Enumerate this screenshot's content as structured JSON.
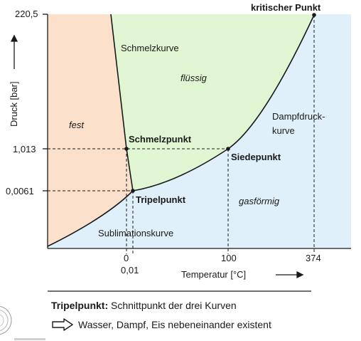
{
  "colors": {
    "solid": "#fbe0cc",
    "liquid": "#e0f6d3",
    "gas": "#dff0fb",
    "line": "#1a1a1a"
  },
  "axes": {
    "y_label": "Druck [bar]",
    "x_label": "Temperatur [°C]",
    "y_ticks": [
      "220,5",
      "1,013",
      "0,0061"
    ],
    "x_ticks": [
      "0",
      "0,01",
      "100",
      "374"
    ]
  },
  "regions": {
    "solid": "fest",
    "liquid": "flüssig",
    "gas": "gasförmig"
  },
  "curves": {
    "melting": "Schmelzkurve",
    "vapor_line_1": "Dampfdruck-",
    "vapor_line_2": "kurve",
    "sublimation": "Sublimationskurve"
  },
  "points": {
    "critical": "kritischer Punkt",
    "melting": "Schmelzpunkt",
    "boiling": "Siedepunkt",
    "triple": "Tripelpunkt"
  },
  "note": {
    "term": "Tripelpunkt:",
    "definition": "Schnittpunkt der drei Kurven",
    "arrow_icon": "hollow-arrow-icon",
    "consequence": "Wasser, Dampf, Eis nebeneinander existent"
  },
  "chart_data": {
    "type": "phase-diagram",
    "xlabel": "Temperatur [°C]",
    "ylabel": "Druck [bar]",
    "y_scale": "nonlinear (schematic)",
    "x_scale": "nonlinear (schematic)",
    "points": [
      {
        "name": "Tripelpunkt",
        "x": 0.01,
        "y": 0.0061
      },
      {
        "name": "Schmelzpunkt",
        "x": 0,
        "y": 1.013
      },
      {
        "name": "Siedepunkt",
        "x": 100,
        "y": 1.013
      },
      {
        "name": "kritischer Punkt",
        "x": 374,
        "y": 220.5
      }
    ],
    "regions": [
      "fest",
      "flüssig",
      "gasförmig"
    ],
    "curves": [
      "Schmelzkurve",
      "Dampfdruckkurve",
      "Sublimationskurve"
    ]
  }
}
